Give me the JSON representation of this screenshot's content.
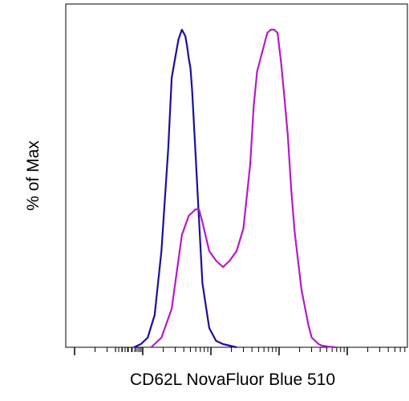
{
  "chart_data": {
    "type": "line",
    "title": "",
    "xlabel": "CD62L NovaFluor Blue 510",
    "ylabel": "% of Max",
    "xlim": [
      0,
      100
    ],
    "ylim": [
      0,
      100
    ],
    "log_x": true,
    "grid": false,
    "legend": "none",
    "series": [
      {
        "color": "#1a0f9e",
        "x": [
          20,
          22,
          24,
          26,
          28,
          30,
          31,
          32,
          33,
          34,
          35,
          35.5,
          36,
          36.5,
          37,
          38,
          39,
          40,
          42,
          44,
          46,
          48,
          50
        ],
        "y": [
          0,
          1,
          3,
          10,
          30,
          62,
          84,
          90,
          96,
          99,
          97,
          94,
          90,
          87,
          80,
          60,
          40,
          20,
          6,
          2,
          1,
          0.5,
          0
        ]
      },
      {
        "color": "#b51ac6",
        "x": [
          25,
          28,
          31,
          34,
          36,
          38,
          39,
          40,
          42,
          44,
          46,
          48,
          50,
          52,
          54,
          55,
          56,
          58,
          59,
          60,
          61,
          62,
          63,
          64,
          65,
          66,
          67,
          69,
          71,
          72,
          73,
          74,
          75,
          77,
          79
        ],
        "y": [
          0,
          3,
          12,
          35,
          41,
          43,
          43,
          39,
          30,
          27,
          25,
          27,
          30,
          37,
          57,
          75,
          86,
          94,
          98,
          99,
          99,
          98,
          89,
          78,
          66,
          49,
          36,
          18,
          7,
          3,
          2,
          1,
          0.5,
          0.2,
          0
        ]
      }
    ]
  }
}
